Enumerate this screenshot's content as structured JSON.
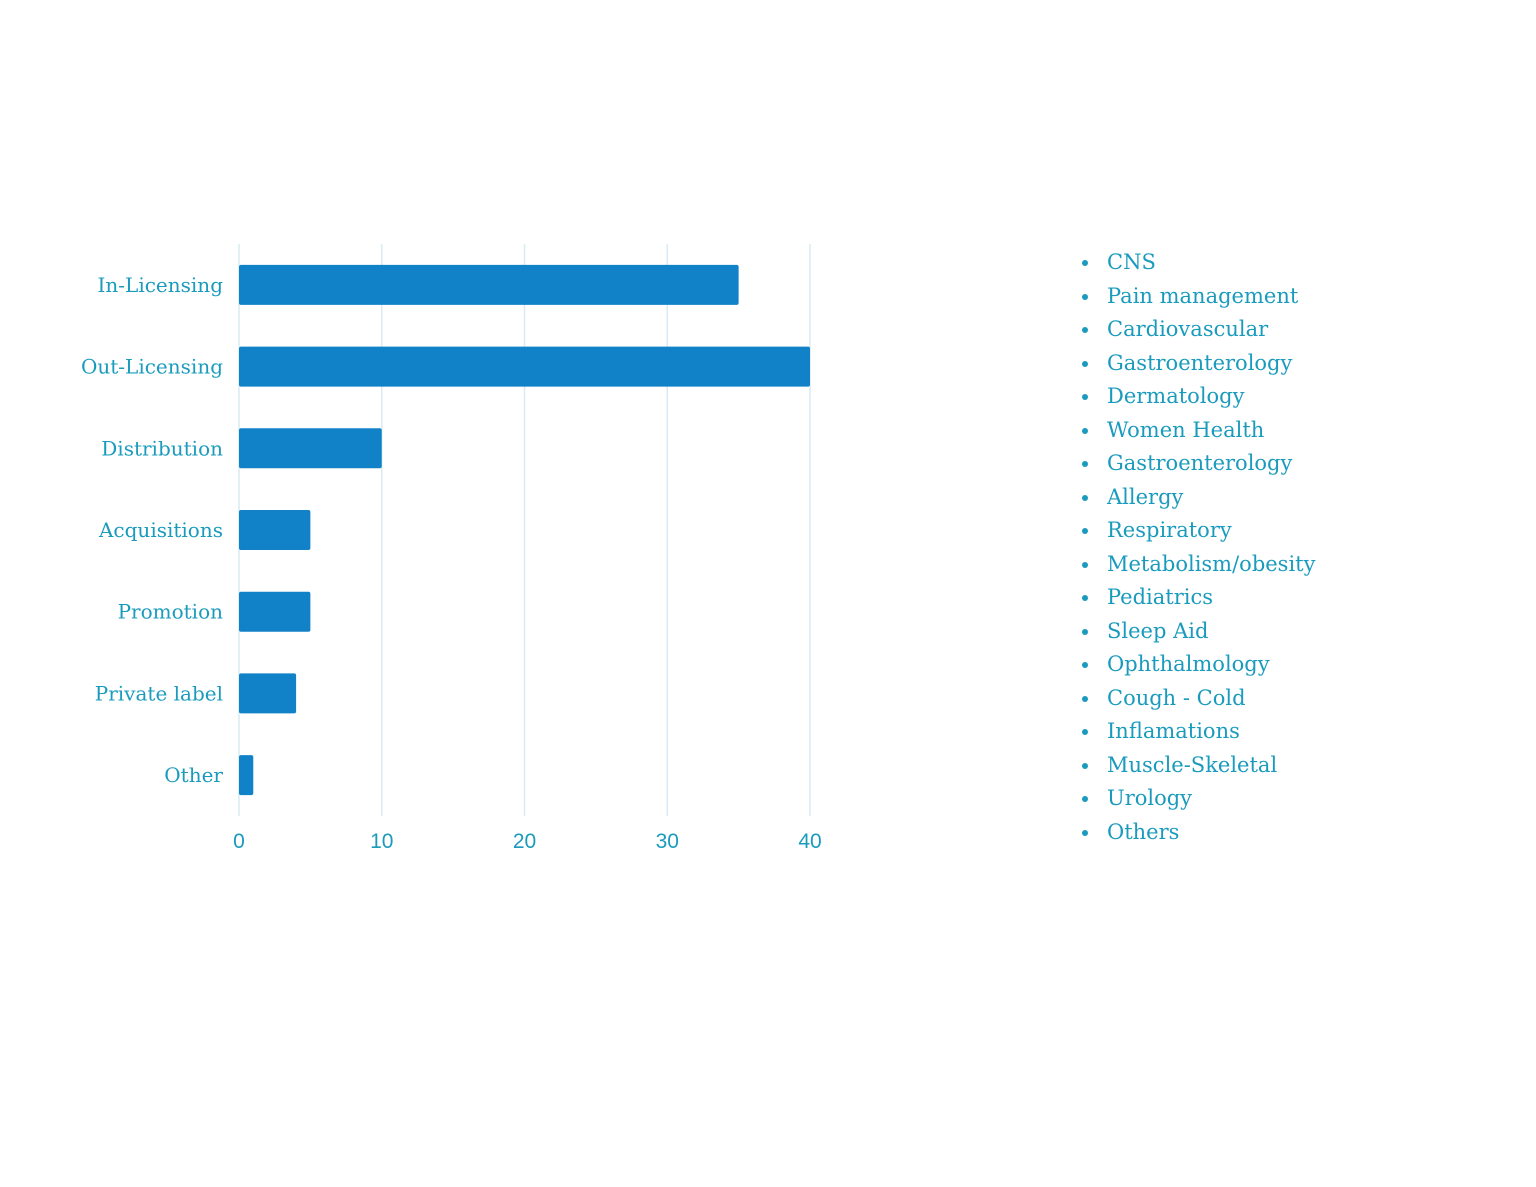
{
  "chart_data": {
    "type": "bar",
    "orientation": "horizontal",
    "categories": [
      "In-Licensing",
      "Out-Licensing",
      "Distribution",
      "Acquisitions",
      "Promotion",
      "Private label",
      "Other"
    ],
    "values": [
      35,
      40,
      10,
      5,
      5,
      4,
      1
    ],
    "xlim": [
      0,
      40
    ],
    "xticks": [
      "0",
      "10",
      "20",
      "30",
      "40"
    ],
    "title": "",
    "xlabel": "",
    "ylabel": "",
    "grid": "vertical",
    "bar_color": "#1282c8",
    "text_color": "#1a9bbd"
  },
  "list": {
    "items": [
      "CNS",
      "Pain management",
      "Cardiovascular",
      "Gastroenterology",
      "Dermatology",
      "Women Health",
      "Gastroenterology",
      "Allergy",
      "Respiratory",
      "Metabolism/obesity",
      "Pediatrics",
      "Sleep Aid",
      "Ophthalmology",
      "Cough - Cold",
      "Inflamations",
      "Muscle-Skeletal",
      "Urology",
      "Others"
    ]
  }
}
